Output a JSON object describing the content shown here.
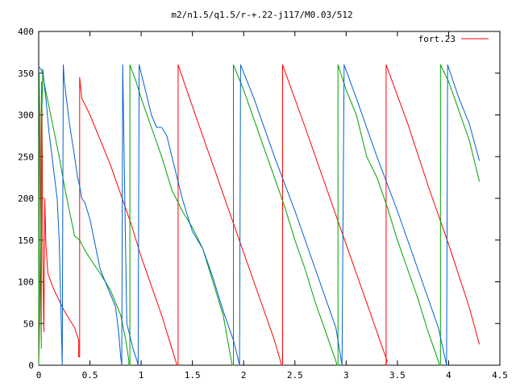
{
  "chart_data": {
    "type": "line",
    "title": "m2/n1.5/q1.5/r-+.22-j117/M0.03/512",
    "xlabel": "",
    "ylabel": "",
    "xlim": [
      0,
      4.5
    ],
    "ylim": [
      0,
      400
    ],
    "xticks": [
      "0",
      "0.5",
      "1",
      "1.5",
      "2",
      "2.5",
      "3",
      "3.5",
      "4",
      "4.5"
    ],
    "yticks": [
      "0",
      "50",
      "100",
      "150",
      "200",
      "250",
      "300",
      "350",
      "400"
    ],
    "grid": false,
    "legend_position": "top-right",
    "legend_entry": "fort.23",
    "series": [
      {
        "name": "fort.23",
        "color": "#ff0000",
        "points": [
          [
            0.0,
            0
          ],
          [
            0.01,
            70
          ],
          [
            0.02,
            200
          ],
          [
            0.025,
            300
          ],
          [
            0.03,
            340
          ],
          [
            0.035,
            250
          ],
          [
            0.04,
            150
          ],
          [
            0.045,
            90
          ],
          [
            0.05,
            40
          ],
          [
            0.06,
            200
          ],
          [
            0.07,
            145
          ],
          [
            0.09,
            110
          ],
          [
            0.15,
            90
          ],
          [
            0.25,
            65
          ],
          [
            0.35,
            45
          ],
          [
            0.39,
            30
          ],
          [
            0.39,
            10
          ],
          [
            0.4,
            10
          ],
          [
            0.4,
            345
          ],
          [
            0.42,
            320
          ],
          [
            0.5,
            300
          ],
          [
            0.6,
            270
          ],
          [
            0.7,
            240
          ],
          [
            0.8,
            205
          ],
          [
            0.9,
            170
          ],
          [
            1.0,
            130
          ],
          [
            1.1,
            95
          ],
          [
            1.2,
            60
          ],
          [
            1.3,
            20
          ],
          [
            1.35,
            0
          ],
          [
            1.36,
            0
          ],
          [
            1.36,
            360
          ],
          [
            1.5,
            310
          ],
          [
            1.7,
            240
          ],
          [
            1.9,
            170
          ],
          [
            2.1,
            100
          ],
          [
            2.3,
            30
          ],
          [
            2.37,
            0
          ],
          [
            2.38,
            0
          ],
          [
            2.38,
            360
          ],
          [
            2.6,
            285
          ],
          [
            2.8,
            215
          ],
          [
            3.0,
            145
          ],
          [
            3.2,
            75
          ],
          [
            3.4,
            5
          ],
          [
            3.38,
            0
          ],
          [
            3.39,
            0
          ],
          [
            3.39,
            360
          ],
          [
            3.6,
            290
          ],
          [
            3.8,
            215
          ],
          [
            4.0,
            145
          ],
          [
            4.2,
            70
          ],
          [
            4.3,
            25
          ]
        ]
      },
      {
        "name": "",
        "color": "#00a000",
        "points": [
          [
            0.0,
            0
          ],
          [
            0.005,
            350
          ],
          [
            0.01,
            300
          ],
          [
            0.015,
            200
          ],
          [
            0.02,
            100
          ],
          [
            0.025,
            20
          ],
          [
            0.03,
            300
          ],
          [
            0.04,
            355
          ],
          [
            0.05,
            340
          ],
          [
            0.1,
            310
          ],
          [
            0.15,
            280
          ],
          [
            0.2,
            250
          ],
          [
            0.25,
            215
          ],
          [
            0.3,
            185
          ],
          [
            0.35,
            155
          ],
          [
            0.4,
            150
          ],
          [
            0.45,
            138
          ],
          [
            0.5,
            128
          ],
          [
            0.6,
            110
          ],
          [
            0.7,
            90
          ],
          [
            0.8,
            60
          ],
          [
            0.85,
            30
          ],
          [
            0.88,
            5
          ],
          [
            0.88,
            0
          ],
          [
            0.89,
            0
          ],
          [
            0.89,
            360
          ],
          [
            0.95,
            340
          ],
          [
            1.0,
            320
          ],
          [
            1.1,
            285
          ],
          [
            1.2,
            250
          ],
          [
            1.3,
            210
          ],
          [
            1.4,
            185
          ],
          [
            1.5,
            165
          ],
          [
            1.6,
            140
          ],
          [
            1.7,
            100
          ],
          [
            1.8,
            60
          ],
          [
            1.88,
            5
          ],
          [
            1.89,
            0
          ],
          [
            1.9,
            0
          ],
          [
            1.9,
            360
          ],
          [
            2.0,
            330
          ],
          [
            2.1,
            295
          ],
          [
            2.2,
            260
          ],
          [
            2.3,
            225
          ],
          [
            2.4,
            190
          ],
          [
            2.5,
            150
          ],
          [
            2.6,
            115
          ],
          [
            2.7,
            75
          ],
          [
            2.8,
            40
          ],
          [
            2.9,
            5
          ],
          [
            2.91,
            0
          ],
          [
            2.92,
            0
          ],
          [
            2.92,
            360
          ],
          [
            3.0,
            330
          ],
          [
            3.1,
            300
          ],
          [
            3.2,
            250
          ],
          [
            3.3,
            225
          ],
          [
            3.4,
            190
          ],
          [
            3.5,
            150
          ],
          [
            3.6,
            115
          ],
          [
            3.7,
            80
          ],
          [
            3.8,
            40
          ],
          [
            3.9,
            5
          ],
          [
            3.91,
            0
          ],
          [
            3.92,
            0
          ],
          [
            3.92,
            360
          ],
          [
            4.0,
            340
          ],
          [
            4.1,
            305
          ],
          [
            4.2,
            270
          ],
          [
            4.3,
            220
          ]
        ]
      },
      {
        "name": "",
        "color": "#0060d0",
        "points": [
          [
            0.0,
            358
          ],
          [
            0.02,
            355
          ],
          [
            0.04,
            350
          ],
          [
            0.05,
            340
          ],
          [
            0.07,
            320
          ],
          [
            0.1,
            280
          ],
          [
            0.12,
            260
          ],
          [
            0.14,
            240
          ],
          [
            0.16,
            220
          ],
          [
            0.18,
            200
          ],
          [
            0.2,
            150
          ],
          [
            0.22,
            50
          ],
          [
            0.23,
            0
          ],
          [
            0.24,
            360
          ],
          [
            0.25,
            340
          ],
          [
            0.3,
            290
          ],
          [
            0.35,
            250
          ],
          [
            0.38,
            225
          ],
          [
            0.4,
            215
          ],
          [
            0.42,
            200
          ],
          [
            0.45,
            195
          ],
          [
            0.5,
            175
          ],
          [
            0.55,
            145
          ],
          [
            0.6,
            115
          ],
          [
            0.65,
            100
          ],
          [
            0.7,
            85
          ],
          [
            0.75,
            70
          ],
          [
            0.78,
            40
          ],
          [
            0.8,
            10
          ],
          [
            0.81,
            0
          ],
          [
            0.82,
            360
          ],
          [
            0.84,
            200
          ],
          [
            0.86,
            50
          ],
          [
            0.88,
            40
          ],
          [
            0.92,
            20
          ],
          [
            0.96,
            5
          ],
          [
            0.97,
            0
          ],
          [
            0.98,
            360
          ],
          [
            1.0,
            350
          ],
          [
            1.05,
            325
          ],
          [
            1.1,
            300
          ],
          [
            1.15,
            285
          ],
          [
            1.2,
            285
          ],
          [
            1.25,
            275
          ],
          [
            1.3,
            250
          ],
          [
            1.4,
            200
          ],
          [
            1.5,
            160
          ],
          [
            1.6,
            140
          ],
          [
            1.7,
            105
          ],
          [
            1.8,
            65
          ],
          [
            1.9,
            30
          ],
          [
            1.95,
            5
          ],
          [
            1.96,
            0
          ],
          [
            1.97,
            360
          ],
          [
            2.1,
            320
          ],
          [
            2.3,
            250
          ],
          [
            2.5,
            185
          ],
          [
            2.7,
            115
          ],
          [
            2.9,
            45
          ],
          [
            2.96,
            0
          ],
          [
            2.98,
            360
          ],
          [
            3.1,
            320
          ],
          [
            3.3,
            250
          ],
          [
            3.5,
            185
          ],
          [
            3.7,
            115
          ],
          [
            3.9,
            45
          ],
          [
            3.98,
            0
          ],
          [
            3.99,
            360
          ],
          [
            4.1,
            320
          ],
          [
            4.2,
            290
          ],
          [
            4.3,
            245
          ]
        ]
      }
    ]
  }
}
